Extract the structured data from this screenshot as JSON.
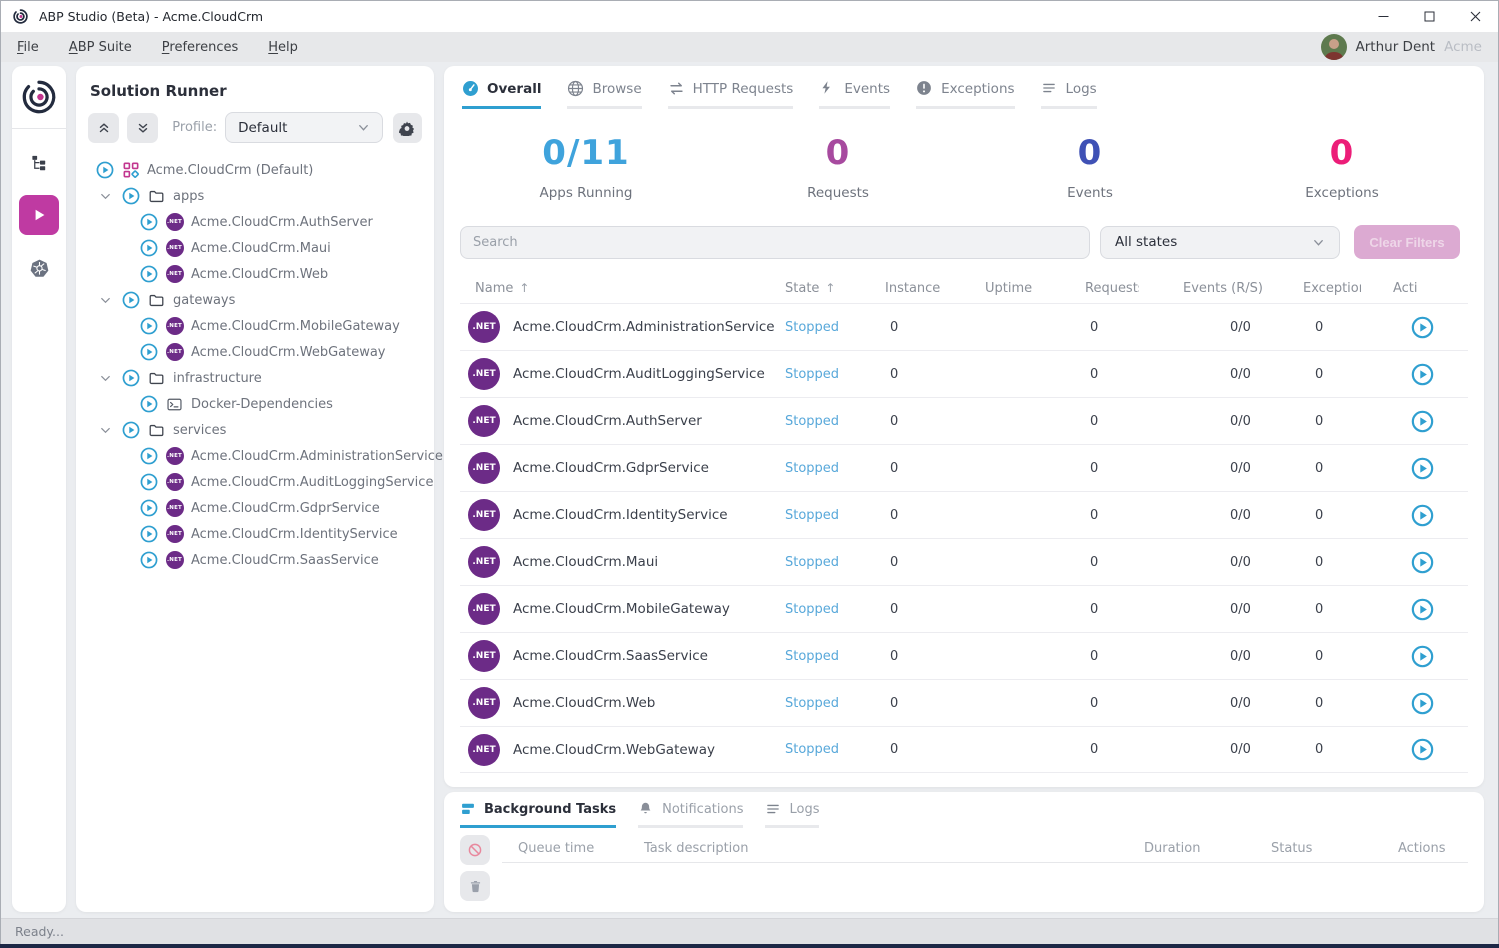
{
  "window": {
    "title": "ABP Studio (Beta) - Acme.CloudCrm"
  },
  "menu": {
    "items": [
      {
        "label": "File"
      },
      {
        "label": "ABP Suite"
      },
      {
        "label": "Preferences"
      },
      {
        "label": "Help"
      }
    ],
    "user_name": "Arthur Dent",
    "user_org": "Acme"
  },
  "rail": {
    "icons": [
      "abp-logo",
      "solution-explorer",
      "solution-runner",
      "kubernetes"
    ]
  },
  "solution_runner": {
    "title": "Solution Runner",
    "profile_label": "Profile:",
    "profile_value": "Default",
    "tree": [
      {
        "label": "Acme.CloudCrm (Default)",
        "type": "solution",
        "level": 0,
        "expander": false
      },
      {
        "label": "apps",
        "type": "folder",
        "level": 1,
        "expander": true
      },
      {
        "label": "Acme.CloudCrm.AuthServer",
        "type": "dotnet",
        "level": 2,
        "expander": false
      },
      {
        "label": "Acme.CloudCrm.Maui",
        "type": "dotnet",
        "level": 2,
        "expander": false
      },
      {
        "label": "Acme.CloudCrm.Web",
        "type": "dotnet",
        "level": 2,
        "expander": false
      },
      {
        "label": "gateways",
        "type": "folder",
        "level": 1,
        "expander": true
      },
      {
        "label": "Acme.CloudCrm.MobileGateway",
        "type": "dotnet",
        "level": 2,
        "expander": false
      },
      {
        "label": "Acme.CloudCrm.WebGateway",
        "type": "dotnet",
        "level": 2,
        "expander": false
      },
      {
        "label": "infrastructure",
        "type": "folder",
        "level": 1,
        "expander": true
      },
      {
        "label": "Docker-Dependencies",
        "type": "terminal",
        "level": 2,
        "expander": false
      },
      {
        "label": "services",
        "type": "folder",
        "level": 1,
        "expander": true
      },
      {
        "label": "Acme.CloudCrm.AdministrationService",
        "type": "dotnet",
        "level": 2,
        "expander": false
      },
      {
        "label": "Acme.CloudCrm.AuditLoggingService",
        "type": "dotnet",
        "level": 2,
        "expander": false
      },
      {
        "label": "Acme.CloudCrm.GdprService",
        "type": "dotnet",
        "level": 2,
        "expander": false
      },
      {
        "label": "Acme.CloudCrm.IdentityService",
        "type": "dotnet",
        "level": 2,
        "expander": false
      },
      {
        "label": "Acme.CloudCrm.SaasService",
        "type": "dotnet",
        "level": 2,
        "expander": false
      }
    ]
  },
  "main": {
    "tabs": [
      {
        "label": "Overall",
        "icon": "gauge",
        "active": true
      },
      {
        "label": "Browse",
        "icon": "globe",
        "active": false
      },
      {
        "label": "HTTP Requests",
        "icon": "arrows",
        "active": false
      },
      {
        "label": "Events",
        "icon": "bolt",
        "active": false
      },
      {
        "label": "Exceptions",
        "icon": "exclamation",
        "active": false
      },
      {
        "label": "Logs",
        "icon": "lines",
        "active": false
      }
    ],
    "stats": [
      {
        "value": "0/11",
        "label": "Apps Running",
        "color": "#3fa3dc"
      },
      {
        "value": "0",
        "label": "Requests",
        "color": "#a74a9f"
      },
      {
        "value": "0",
        "label": "Events",
        "color": "#3f51b5"
      },
      {
        "value": "0",
        "label": "Exceptions",
        "color": "#ec1d78"
      }
    ],
    "search_placeholder": "Search",
    "state_filter_value": "All states",
    "clear_filters_label": "Clear Filters",
    "table": {
      "columns": [
        {
          "label": "Name",
          "sort": "asc"
        },
        {
          "label": "State",
          "sort": "asc"
        },
        {
          "label": "Instance"
        },
        {
          "label": "Uptime"
        },
        {
          "label": "Requests"
        },
        {
          "label": "Events (R/S)"
        },
        {
          "label": "Exceptions"
        },
        {
          "label": "Actions"
        }
      ],
      "rows": [
        {
          "name": "Acme.CloudCrm.AdministrationService",
          "state": "Stopped",
          "instance": "0",
          "uptime": "",
          "requests": "0",
          "events": "0/0",
          "exceptions": "0"
        },
        {
          "name": "Acme.CloudCrm.AuditLoggingService",
          "state": "Stopped",
          "instance": "0",
          "uptime": "",
          "requests": "0",
          "events": "0/0",
          "exceptions": "0"
        },
        {
          "name": "Acme.CloudCrm.AuthServer",
          "state": "Stopped",
          "instance": "0",
          "uptime": "",
          "requests": "0",
          "events": "0/0",
          "exceptions": "0"
        },
        {
          "name": "Acme.CloudCrm.GdprService",
          "state": "Stopped",
          "instance": "0",
          "uptime": "",
          "requests": "0",
          "events": "0/0",
          "exceptions": "0"
        },
        {
          "name": "Acme.CloudCrm.IdentityService",
          "state": "Stopped",
          "instance": "0",
          "uptime": "",
          "requests": "0",
          "events": "0/0",
          "exceptions": "0"
        },
        {
          "name": "Acme.CloudCrm.Maui",
          "state": "Stopped",
          "instance": "0",
          "uptime": "",
          "requests": "0",
          "events": "0/0",
          "exceptions": "0"
        },
        {
          "name": "Acme.CloudCrm.MobileGateway",
          "state": "Stopped",
          "instance": "0",
          "uptime": "",
          "requests": "0",
          "events": "0/0",
          "exceptions": "0"
        },
        {
          "name": "Acme.CloudCrm.SaasService",
          "state": "Stopped",
          "instance": "0",
          "uptime": "",
          "requests": "0",
          "events": "0/0",
          "exceptions": "0"
        },
        {
          "name": "Acme.CloudCrm.Web",
          "state": "Stopped",
          "instance": "0",
          "uptime": "",
          "requests": "0",
          "events": "0/0",
          "exceptions": "0"
        },
        {
          "name": "Acme.CloudCrm.WebGateway",
          "state": "Stopped",
          "instance": "0",
          "uptime": "",
          "requests": "0",
          "events": "0/0",
          "exceptions": "0"
        }
      ]
    }
  },
  "bottom_panel": {
    "tabs": [
      {
        "label": "Background Tasks",
        "icon": "tasks",
        "active": true
      },
      {
        "label": "Notifications",
        "icon": "bell",
        "active": false
      },
      {
        "label": "Logs",
        "icon": "lines",
        "active": false
      }
    ],
    "columns": [
      "Queue time",
      "Task description",
      "Duration",
      "Status",
      "Actions"
    ]
  },
  "statusbar": {
    "text": "Ready..."
  },
  "icons": {
    "net_badge_text": ".NET"
  },
  "colors": {
    "accent_blue": "#2f9fd0",
    "stopped_text": "#58a8da",
    "magenta_accent": "#bf3aa2",
    "dotnet_purple": "#6c2b87",
    "clear_filters_bg": "#dcaad2"
  }
}
